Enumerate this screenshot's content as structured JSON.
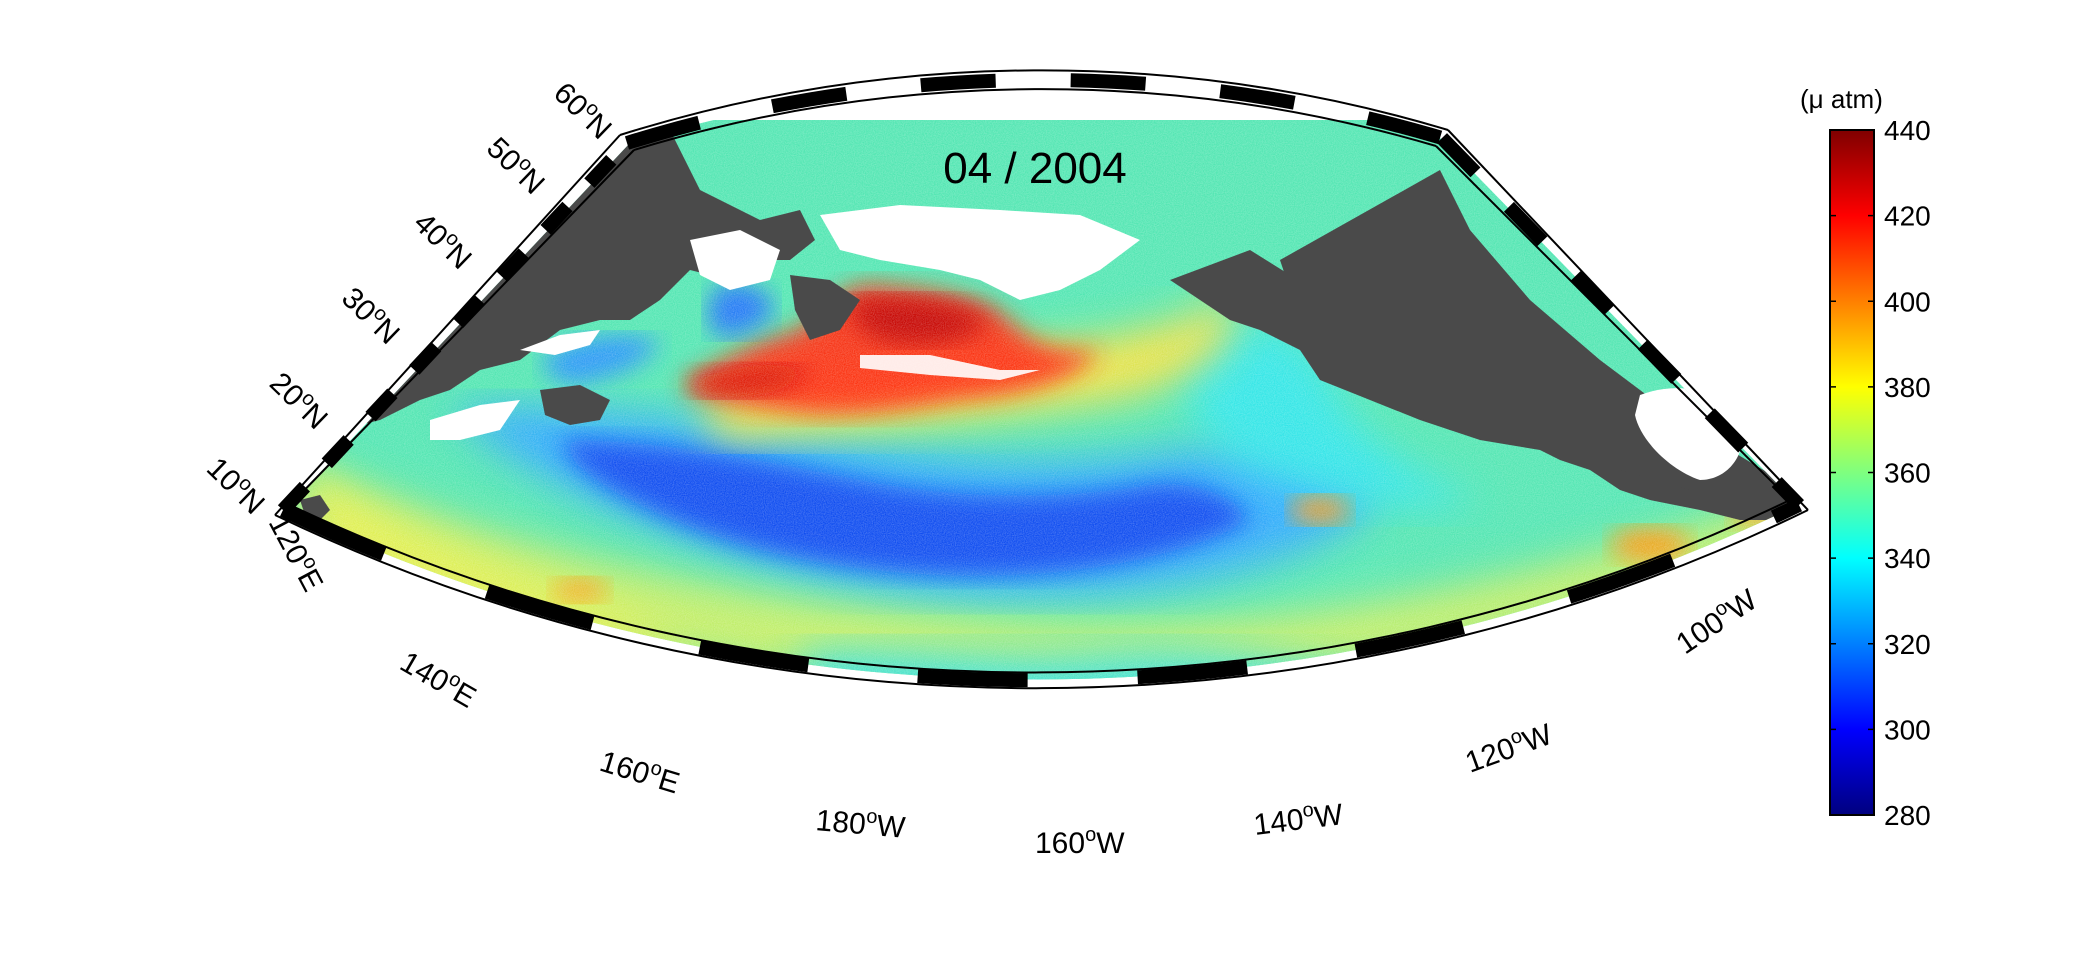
{
  "title": "04 / 2004",
  "colorbar": {
    "unit_label": "(μ atm)",
    "ticks": [
      "440",
      "420",
      "400",
      "380",
      "360",
      "340",
      "320",
      "300",
      "280"
    ],
    "min": 280,
    "max": 440,
    "colors": [
      "#00007f",
      "#0000ff",
      "#007fff",
      "#00ffff",
      "#7fff7f",
      "#ffff00",
      "#ff7f00",
      "#ff0000",
      "#7f0000"
    ]
  },
  "map": {
    "land_color": "#4a4a4a",
    "lat_labels": [
      {
        "deg": "10",
        "hemi": "N"
      },
      {
        "deg": "20",
        "hemi": "N"
      },
      {
        "deg": "30",
        "hemi": "N"
      },
      {
        "deg": "40",
        "hemi": "N"
      },
      {
        "deg": "50",
        "hemi": "N"
      },
      {
        "deg": "60",
        "hemi": "N"
      }
    ],
    "lon_labels": [
      {
        "deg": "120",
        "hemi": "E"
      },
      {
        "deg": "140",
        "hemi": "E"
      },
      {
        "deg": "160",
        "hemi": "E"
      },
      {
        "deg": "180",
        "hemi": "W"
      },
      {
        "deg": "160",
        "hemi": "W"
      },
      {
        "deg": "140",
        "hemi": "W"
      },
      {
        "deg": "120",
        "hemi": "W"
      },
      {
        "deg": "100",
        "hemi": "W"
      }
    ]
  }
}
